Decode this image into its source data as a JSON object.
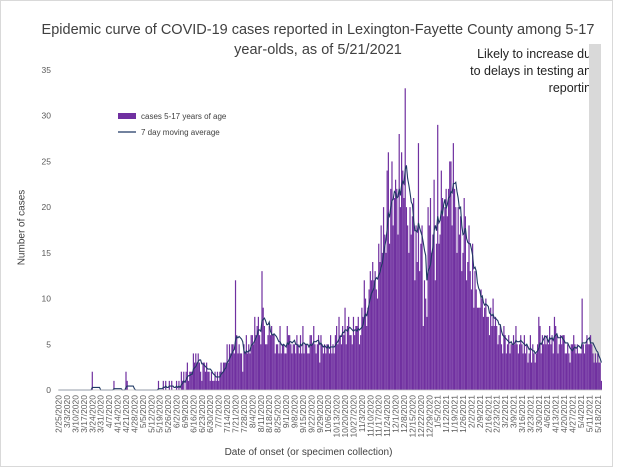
{
  "chart_data": {
    "type": "bar",
    "title": "Epidemic curve of COVID-19 cases reported in Lexington-Fayette County among 5-17 year-olds, as of 5/21/2021",
    "xlabel": "Date of onset (or specimen collection)",
    "ylabel": "Number of cases",
    "ylim": [
      0,
      35
    ],
    "yticks": [
      0,
      5,
      10,
      15,
      20,
      25,
      30,
      35
    ],
    "xlim": [
      "2020-02-25",
      "2021-05-21"
    ],
    "grid": false,
    "legend_position": "upper-left",
    "annotation": "Likely to increase due to delays in testing and reporting",
    "xtick_labels": [
      "2/25/2020",
      "3/3/2020",
      "3/10/2020",
      "3/17/2020",
      "3/24/2020",
      "3/31/2020",
      "4/7/2020",
      "4/14/2020",
      "4/21/2020",
      "4/28/2020",
      "5/5/2020",
      "5/12/2020",
      "5/19/2020",
      "5/26/2020",
      "6/2/2020",
      "6/9/2020",
      "6/16/2020",
      "6/23/2020",
      "6/30/2020",
      "7/7/2020",
      "7/14/2020",
      "7/21/2020",
      "7/28/2020",
      "8/4/2020",
      "8/11/2020",
      "8/18/2020",
      "8/25/2020",
      "9/1/2020",
      "9/8/2020",
      "9/15/2020",
      "9/22/2020",
      "9/29/2020",
      "10/6/2020",
      "10/13/2020",
      "10/20/2020",
      "10/27/2020",
      "11/3/2020",
      "11/10/2020",
      "11/17/2020",
      "11/24/2020",
      "12/1/2020",
      "12/8/2020",
      "12/15/2020",
      "12/22/2020",
      "12/29/2020",
      "1/5/2021",
      "1/12/2021",
      "1/19/2021",
      "1/26/2021",
      "2/2/2021",
      "2/9/2021",
      "2/16/2021",
      "2/23/2021",
      "3/2/2021",
      "3/9/2021",
      "3/16/2021",
      "3/23/2021",
      "3/30/2021",
      "4/6/2021",
      "4/13/2021",
      "4/20/2021",
      "4/27/2021",
      "5/4/2021",
      "5/11/2021",
      "5/18/2021"
    ],
    "series": [
      {
        "name": "cases 5-17 years of age",
        "kind": "bar",
        "color": "#7030a0",
        "weekly_daily_counts": [
          [
            0,
            0,
            0,
            0,
            0,
            0,
            0
          ],
          [
            0,
            0,
            0,
            0,
            0,
            0,
            0
          ],
          [
            0,
            0,
            0,
            0,
            0,
            0,
            0
          ],
          [
            0,
            0,
            0,
            0,
            0,
            0,
            0
          ],
          [
            2,
            0,
            0,
            0,
            0,
            0,
            0
          ],
          [
            0,
            0,
            0,
            0,
            0,
            0,
            0
          ],
          [
            0,
            0,
            0,
            0,
            1,
            0,
            0
          ],
          [
            0,
            0,
            0,
            0,
            0,
            0,
            0
          ],
          [
            2,
            1,
            0,
            0,
            0,
            0,
            0
          ],
          [
            0,
            0,
            0,
            0,
            0,
            0,
            0
          ],
          [
            0,
            0,
            0,
            0,
            0,
            0,
            0
          ],
          [
            0,
            0,
            0,
            0,
            0,
            0,
            1
          ],
          [
            0,
            0,
            0,
            1,
            0,
            1,
            0
          ],
          [
            0,
            1,
            0,
            1,
            0,
            0,
            0
          ],
          [
            1,
            0,
            1,
            0,
            2,
            1,
            2
          ],
          [
            0,
            2,
            3,
            1,
            2,
            2,
            2
          ],
          [
            4,
            3,
            4,
            3,
            4,
            3,
            2
          ],
          [
            1,
            3,
            3,
            2,
            3,
            2,
            2
          ],
          [
            1,
            2,
            1,
            1,
            2,
            1,
            2
          ],
          [
            1,
            2,
            3,
            2,
            3,
            3,
            3
          ],
          [
            5,
            3,
            5,
            4,
            5,
            5,
            4
          ],
          [
            12,
            6,
            4,
            5,
            4,
            4,
            2
          ],
          [
            5,
            4,
            6,
            4,
            5,
            4,
            6
          ],
          [
            6,
            5,
            8,
            6,
            7,
            8,
            6
          ],
          [
            5,
            13,
            9,
            7,
            5,
            5,
            6
          ],
          [
            7,
            6,
            7,
            6,
            6,
            4,
            5
          ],
          [
            5,
            4,
            7,
            4,
            5,
            5,
            4
          ],
          [
            4,
            7,
            6,
            6,
            5,
            4,
            5
          ],
          [
            5,
            4,
            6,
            5,
            4,
            6,
            4
          ],
          [
            7,
            4,
            5,
            5,
            4,
            4,
            6
          ],
          [
            6,
            5,
            7,
            5,
            4,
            5,
            6
          ],
          [
            3,
            6,
            5,
            4,
            5,
            4,
            5
          ],
          [
            5,
            4,
            6,
            4,
            5,
            4,
            6
          ],
          [
            7,
            5,
            8,
            6,
            5,
            7,
            6
          ],
          [
            9,
            5,
            7,
            8,
            6,
            6,
            5
          ],
          [
            8,
            6,
            7,
            7,
            8,
            5,
            6
          ],
          [
            9,
            8,
            12,
            10,
            7,
            9,
            11
          ],
          [
            13,
            12,
            14,
            12,
            13,
            11,
            10
          ],
          [
            16,
            14,
            18,
            15,
            20,
            17,
            15
          ],
          [
            24,
            26,
            16,
            22,
            25,
            18,
            21
          ],
          [
            23,
            22,
            17,
            28,
            20,
            26,
            24
          ],
          [
            21,
            33,
            20,
            18,
            15,
            20,
            17
          ],
          [
            19,
            21,
            12,
            18,
            14,
            27,
            13
          ],
          [
            16,
            18,
            7,
            12,
            10,
            8,
            20
          ],
          [
            18,
            21,
            15,
            17,
            23,
            12,
            16
          ],
          [
            29,
            16,
            17,
            24,
            21,
            19,
            20
          ],
          [
            22,
            19,
            22,
            25,
            25,
            18,
            27
          ],
          [
            22,
            20,
            15,
            20,
            17,
            19,
            13
          ],
          [
            15,
            21,
            19,
            12,
            14,
            18,
            13
          ],
          [
            11,
            16,
            9,
            13,
            11,
            9,
            9
          ],
          [
            9,
            11,
            10,
            8,
            9,
            10,
            8
          ],
          [
            8,
            6,
            9,
            7,
            10,
            7,
            8
          ],
          [
            7,
            5,
            6,
            7,
            5,
            4,
            7
          ],
          [
            6,
            4,
            5,
            6,
            4,
            5,
            5
          ],
          [
            6,
            5,
            7,
            5,
            4,
            5,
            6
          ],
          [
            5,
            4,
            6,
            4,
            5,
            3,
            4
          ],
          [
            6,
            3,
            5,
            4,
            3,
            4,
            5
          ],
          [
            8,
            7,
            4,
            6,
            5,
            6,
            5
          ],
          [
            6,
            5,
            7,
            5,
            6,
            4,
            8
          ],
          [
            7,
            6,
            4,
            5,
            6,
            5,
            6
          ],
          [
            6,
            4,
            4,
            5,
            4,
            3,
            5
          ],
          [
            5,
            6,
            5,
            4,
            5,
            4,
            4
          ],
          [
            4,
            10,
            5,
            4,
            5,
            6,
            5
          ],
          [
            5,
            6,
            5,
            4,
            3,
            4,
            3
          ],
          [
            4,
            3,
            3,
            1
          ]
        ]
      },
      {
        "name": "7 day moving average",
        "kind": "line",
        "color": "#1f3864"
      }
    ]
  }
}
